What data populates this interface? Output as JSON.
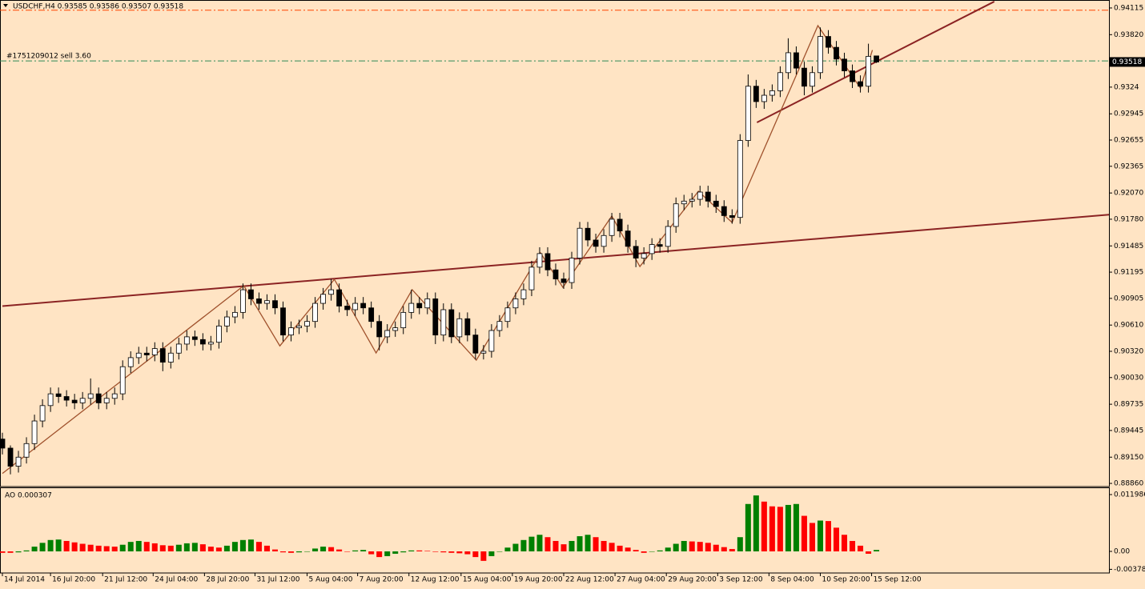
{
  "chart_data": [
    {
      "type": "candlestick",
      "title": "USDCHF,H4  0.93585 0.93586 0.93507 0.93518",
      "open": [
        0.8935,
        0.8925,
        0.8905,
        0.8915,
        0.893,
        0.8955,
        0.8972,
        0.8985,
        0.8982,
        0.8978,
        0.8975,
        0.898,
        0.8985,
        0.8975,
        0.898,
        0.8985,
        0.9015,
        0.9025,
        0.903,
        0.9028,
        0.9035,
        0.902,
        0.903,
        0.904,
        0.9048,
        0.9045,
        0.904,
        0.9042,
        0.906,
        0.907,
        0.9075,
        0.91,
        0.909,
        0.9085,
        0.9088,
        0.908,
        0.905,
        0.9058,
        0.906,
        0.9065,
        0.9085,
        0.9095,
        0.91,
        0.9082,
        0.9078,
        0.9085,
        0.908,
        0.9065,
        0.9048,
        0.9055,
        0.9058,
        0.9075,
        0.9085,
        0.908,
        0.909,
        0.905,
        0.9078,
        0.9048,
        0.9068,
        0.905,
        0.903,
        0.9032,
        0.9055,
        0.9065,
        0.908,
        0.909,
        0.91,
        0.9125,
        0.914,
        0.9122,
        0.9112,
        0.9108,
        0.9135,
        0.9168,
        0.9155,
        0.9148,
        0.916,
        0.9178,
        0.9165,
        0.9148,
        0.9135,
        0.914,
        0.915,
        0.9148,
        0.917,
        0.9195,
        0.9198,
        0.92,
        0.9208,
        0.9198,
        0.9192,
        0.9182,
        0.918,
        0.9265,
        0.9325,
        0.9308,
        0.9315,
        0.932,
        0.934,
        0.9362,
        0.9345,
        0.9325,
        0.934,
        0.938,
        0.9368,
        0.9355,
        0.9342,
        0.933,
        0.9325,
        0.93585
      ],
      "high": [
        0.8942,
        0.8928,
        0.8922,
        0.8937,
        0.8962,
        0.8979,
        0.8992,
        0.8992,
        0.8989,
        0.8985,
        0.8987,
        0.9002,
        0.8992,
        0.8987,
        0.8992,
        0.9022,
        0.9032,
        0.9037,
        0.9037,
        0.9042,
        0.9042,
        0.9037,
        0.9047,
        0.9055,
        0.9055,
        0.9052,
        0.9049,
        0.9067,
        0.9077,
        0.9082,
        0.9107,
        0.9107,
        0.9097,
        0.9095,
        0.9095,
        0.9087,
        0.9065,
        0.9067,
        0.9072,
        0.9092,
        0.9102,
        0.9112,
        0.9107,
        0.9089,
        0.9092,
        0.9092,
        0.9087,
        0.9072,
        0.9062,
        0.9065,
        0.9082,
        0.91,
        0.9092,
        0.9097,
        0.9097,
        0.9085,
        0.9085,
        0.9075,
        0.9075,
        0.9057,
        0.9039,
        0.9062,
        0.9072,
        0.9087,
        0.9097,
        0.9107,
        0.9132,
        0.9147,
        0.9147,
        0.9129,
        0.9119,
        0.9142,
        0.9175,
        0.9175,
        0.9162,
        0.9167,
        0.9185,
        0.9185,
        0.9172,
        0.9155,
        0.9147,
        0.9157,
        0.9157,
        0.9177,
        0.9202,
        0.9205,
        0.9207,
        0.9215,
        0.9215,
        0.9205,
        0.9199,
        0.9189,
        0.9272,
        0.9338,
        0.9332,
        0.9322,
        0.9327,
        0.9347,
        0.9378,
        0.9369,
        0.9352,
        0.9347,
        0.939,
        0.9387,
        0.9375,
        0.9362,
        0.9349,
        0.9337,
        0.9372,
        0.93586
      ],
      "low": [
        0.8918,
        0.8896,
        0.8898,
        0.8908,
        0.8923,
        0.8948,
        0.8965,
        0.8975,
        0.8971,
        0.8968,
        0.8968,
        0.8973,
        0.8968,
        0.8968,
        0.8973,
        0.8978,
        0.9008,
        0.9018,
        0.9021,
        0.9021,
        0.901,
        0.9013,
        0.9023,
        0.9033,
        0.9038,
        0.9033,
        0.9033,
        0.9035,
        0.9053,
        0.9063,
        0.9068,
        0.9083,
        0.9078,
        0.9078,
        0.9073,
        0.9043,
        0.9043,
        0.9051,
        0.9053,
        0.9058,
        0.9078,
        0.9088,
        0.9075,
        0.9071,
        0.9071,
        0.9073,
        0.9058,
        0.9033,
        0.9041,
        0.9048,
        0.9051,
        0.9068,
        0.9073,
        0.9073,
        0.904,
        0.9043,
        0.9041,
        0.9041,
        0.9043,
        0.9023,
        0.9023,
        0.9025,
        0.9048,
        0.9058,
        0.9073,
        0.9083,
        0.9093,
        0.9118,
        0.9115,
        0.9105,
        0.9101,
        0.9101,
        0.9128,
        0.9148,
        0.9141,
        0.9141,
        0.9153,
        0.9158,
        0.9141,
        0.9125,
        0.9128,
        0.9133,
        0.9141,
        0.9141,
        0.9163,
        0.9188,
        0.9191,
        0.9193,
        0.9191,
        0.9185,
        0.9175,
        0.9173,
        0.9173,
        0.9258,
        0.9301,
        0.93,
        0.9308,
        0.9313,
        0.9333,
        0.9338,
        0.9315,
        0.9318,
        0.9333,
        0.9361,
        0.9348,
        0.9335,
        0.9323,
        0.9318,
        0.9318,
        0.93507
      ],
      "close": [
        0.8925,
        0.8905,
        0.8915,
        0.893,
        0.8955,
        0.8972,
        0.8985,
        0.8982,
        0.8978,
        0.8975,
        0.898,
        0.8985,
        0.8975,
        0.898,
        0.8985,
        0.9015,
        0.9025,
        0.903,
        0.9028,
        0.9035,
        0.902,
        0.903,
        0.904,
        0.9048,
        0.9045,
        0.904,
        0.9042,
        0.906,
        0.907,
        0.9075,
        0.91,
        0.909,
        0.9085,
        0.9088,
        0.908,
        0.905,
        0.9058,
        0.906,
        0.9065,
        0.9085,
        0.9095,
        0.91,
        0.9082,
        0.9078,
        0.9085,
        0.908,
        0.9065,
        0.9048,
        0.9055,
        0.9058,
        0.9075,
        0.9085,
        0.908,
        0.909,
        0.905,
        0.9078,
        0.9048,
        0.9068,
        0.905,
        0.903,
        0.9032,
        0.9055,
        0.9065,
        0.908,
        0.909,
        0.91,
        0.9125,
        0.914,
        0.9122,
        0.9112,
        0.9108,
        0.9135,
        0.9168,
        0.9155,
        0.9148,
        0.916,
        0.9178,
        0.9165,
        0.9148,
        0.9135,
        0.914,
        0.915,
        0.9148,
        0.917,
        0.9195,
        0.9198,
        0.92,
        0.9208,
        0.9198,
        0.9192,
        0.9182,
        0.918,
        0.9265,
        0.9325,
        0.9308,
        0.9315,
        0.932,
        0.934,
        0.9362,
        0.9345,
        0.9325,
        0.934,
        0.938,
        0.9368,
        0.9355,
        0.9342,
        0.933,
        0.9325,
        0.9358,
        0.93518
      ],
      "up_color": "#ffffff",
      "down_color": "#000000",
      "wick_color": "#000000",
      "xlim": [
        -0.3,
        138
      ],
      "ylim": [
        0.88825,
        0.94203
      ],
      "yticks": [
        0.94115,
        {
          "value": 0.9382,
          "label": "0.93820"
        },
        0.9324,
        0.92945,
        0.92655,
        0.92365,
        {
          "value": 0.9207,
          "label": "0.92070"
        },
        {
          "value": 0.9178,
          "label": "0.91780"
        },
        0.91485,
        0.91195,
        0.90905,
        {
          "value": 0.9061,
          "label": "0.90610"
        },
        {
          "value": 0.9032,
          "label": "0.90320"
        },
        {
          "value": 0.9003,
          "label": "0.90030"
        },
        0.89735,
        0.89445,
        {
          "value": 0.8915,
          "label": "0.89150"
        },
        {
          "value": 0.8886,
          "label": "0.88860"
        }
      ],
      "xticks": [
        {
          "value": 0,
          "label": "14 Jul 2014"
        },
        {
          "value": 6,
          "label": "16 Jul 20:00"
        },
        {
          "value": 12.5,
          "label": "21 Jul 12:00"
        },
        {
          "value": 18.8,
          "label": "24 Jul 04:00"
        },
        {
          "value": 25.2,
          "label": "28 Jul 20:00"
        },
        {
          "value": 31.5,
          "label": "31 Jul 12:00"
        },
        {
          "value": 38,
          "label": "5 Aug 04:00"
        },
        {
          "value": 44.3,
          "label": "7 Aug 20:00"
        },
        {
          "value": 50.7,
          "label": "12 Aug 12:00"
        },
        {
          "value": 57.2,
          "label": "15 Aug 04:00"
        },
        {
          "value": 63.6,
          "label": "19 Aug 20:00"
        },
        {
          "value": 70,
          "label": "22 Aug 12:00"
        },
        {
          "value": 76.4,
          "label": "27 Aug 04:00"
        },
        {
          "value": 82.8,
          "label": "29 Aug 20:00"
        },
        {
          "value": 89.2,
          "label": "3 Sep 12:00"
        },
        {
          "value": 95.6,
          "label": "8 Sep 04:00"
        },
        {
          "value": 102,
          "label": "10 Sep 20:00"
        },
        {
          "value": 108.4,
          "label": "15 Sep 12:00"
        }
      ],
      "trendlines": [
        {
          "x": [
            0,
            138
          ],
          "y": [
            0.9082,
            0.9183
          ],
          "color": "#8b2323"
        },
        {
          "x": [
            94.1,
            123.7
          ],
          "y": [
            0.9285,
            0.94186
          ],
          "color": "#8b2323"
        }
      ],
      "zigzag": {
        "x": [
          0,
          30.1,
          34.6,
          41.4,
          46.6,
          51.1,
          59.1,
          67.1,
          69.9,
          76,
          79.5,
          86.8,
          91,
          101.7,
          107,
          108.5
        ],
        "y": [
          0.8897,
          0.91045,
          0.9038,
          0.91115,
          0.90302,
          0.91001,
          0.90222,
          0.91408,
          0.91027,
          0.91815,
          0.91257,
          0.92089,
          0.91744,
          0.9392,
          0.9323,
          0.9365
        ],
        "color": "#a0522d"
      },
      "levels": [
        {
          "value": 0.9409,
          "color": "#ff4500"
        },
        {
          "value": 0.9353,
          "color": "#2e8b57",
          "label": "#1751209012 sell 3.60"
        }
      ],
      "last_price": 0.93518
    },
    {
      "type": "histogram",
      "title": "AO 0.000307",
      "values": [
        -0.0003,
        -0.0003,
        -0.0002,
        0.0002,
        0.001,
        0.0018,
        0.0024,
        0.0025,
        0.0022,
        0.0019,
        0.0016,
        0.0014,
        0.0012,
        0.0011,
        0.001,
        0.0014,
        0.002,
        0.0022,
        0.002,
        0.0017,
        0.0013,
        0.0012,
        0.0014,
        0.0017,
        0.0018,
        0.0015,
        0.001,
        0.0008,
        0.0012,
        0.002,
        0.0024,
        0.0025,
        0.002,
        0.0012,
        0.0004,
        -0.0002,
        -0.0003,
        -0.0002,
        0.0,
        0.0006,
        0.001,
        0.0009,
        0.0004,
        0.0,
        0.0002,
        0.0003,
        -0.0006,
        -0.0012,
        -0.001,
        -0.0005,
        -0.0002,
        0.0002,
        0.0002,
        0.0001,
        -0.0001,
        -0.0002,
        -0.0003,
        -0.0004,
        -0.0006,
        -0.0012,
        -0.002,
        -0.001,
        0.0,
        0.0008,
        0.0016,
        0.0024,
        0.0031,
        0.0035,
        0.003,
        0.0022,
        0.0015,
        0.0022,
        0.0032,
        0.0035,
        0.003,
        0.0022,
        0.0018,
        0.0012,
        0.0008,
        0.0003,
        -0.0003,
        0.0,
        0.0002,
        0.0008,
        0.0016,
        0.0022,
        0.0021,
        0.002,
        0.0018,
        0.0014,
        0.0009,
        0.0005,
        0.003,
        0.01,
        0.0118,
        0.0105,
        0.0095,
        0.0094,
        0.0098,
        0.01,
        0.0075,
        0.006,
        0.0065,
        0.0064,
        0.005,
        0.0035,
        0.0022,
        0.0012,
        -0.0005,
        0.0003
      ],
      "up_color": "#008000",
      "down_color": "#ff0000",
      "ylim": [
        -0.004558,
        0.013336
      ],
      "yticks": [
        0.011986,
        {
          "value": 0,
          "label": "0.00"
        },
        -0.003784
      ]
    }
  ]
}
